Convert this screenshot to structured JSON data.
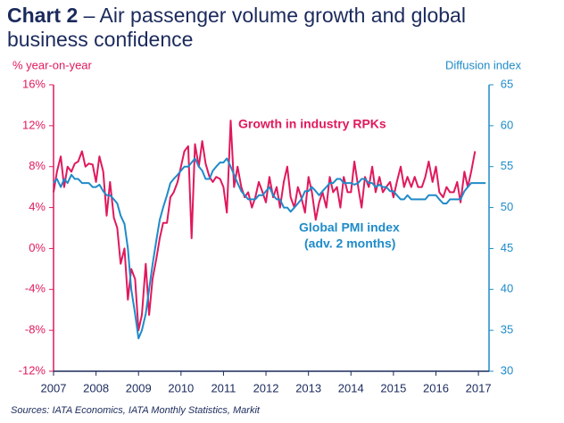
{
  "chart_data": {
    "type": "line",
    "title_label": "Chart 2",
    "title": "– Air passenger volume growth and global business confidence",
    "y_label": "% year-on-year",
    "y2_label": "Diffusion index",
    "source": "Sources: IATA Economics, IATA Monthly Statistics, Markit",
    "xlim": [
      2007,
      2017.25
    ],
    "xticks": [
      2007,
      2008,
      2009,
      2010,
      2011,
      2012,
      2013,
      2014,
      2015,
      2016,
      2017
    ],
    "ylim": [
      -12,
      16
    ],
    "yticks": [
      {
        "value": -12,
        "label": "-12%"
      },
      {
        "value": -8,
        "label": "-8%"
      },
      {
        "value": -4,
        "label": "-4%"
      },
      {
        "value": 0,
        "label": "0%"
      },
      {
        "value": 4,
        "label": "4%"
      },
      {
        "value": 8,
        "label": "8%"
      },
      {
        "value": 12,
        "label": "12%"
      },
      {
        "value": 16,
        "label": "16%"
      }
    ],
    "y2lim": [
      30,
      65
    ],
    "y2ticks": [
      30,
      35,
      40,
      45,
      50,
      55,
      60,
      65
    ],
    "series": [
      {
        "name": "Growth in industry RPKs",
        "color": "#e0195d",
        "axis": "y",
        "x": [
          2007.0,
          2007.08,
          2007.17,
          2007.25,
          2007.33,
          2007.42,
          2007.5,
          2007.58,
          2007.67,
          2007.75,
          2007.83,
          2007.92,
          2008.0,
          2008.08,
          2008.17,
          2008.25,
          2008.33,
          2008.42,
          2008.5,
          2008.58,
          2008.67,
          2008.75,
          2008.83,
          2008.92,
          2009.0,
          2009.08,
          2009.17,
          2009.25,
          2009.33,
          2009.42,
          2009.5,
          2009.58,
          2009.67,
          2009.75,
          2009.83,
          2009.92,
          2010.0,
          2010.08,
          2010.17,
          2010.25,
          2010.33,
          2010.42,
          2010.5,
          2010.58,
          2010.67,
          2010.75,
          2010.83,
          2010.92,
          2011.0,
          2011.08,
          2011.17,
          2011.25,
          2011.33,
          2011.42,
          2011.5,
          2011.58,
          2011.67,
          2011.75,
          2011.83,
          2011.92,
          2012.0,
          2012.08,
          2012.17,
          2012.25,
          2012.33,
          2012.42,
          2012.5,
          2012.58,
          2012.67,
          2012.75,
          2012.83,
          2012.92,
          2013.0,
          2013.08,
          2013.17,
          2013.25,
          2013.33,
          2013.42,
          2013.5,
          2013.58,
          2013.67,
          2013.75,
          2013.83,
          2013.92,
          2014.0,
          2014.08,
          2014.17,
          2014.25,
          2014.33,
          2014.42,
          2014.5,
          2014.58,
          2014.67,
          2014.75,
          2014.83,
          2014.92,
          2015.0,
          2015.08,
          2015.17,
          2015.25,
          2015.33,
          2015.42,
          2015.5,
          2015.58,
          2015.67,
          2015.75,
          2015.83,
          2015.92,
          2016.0,
          2016.08,
          2016.17,
          2016.25,
          2016.33,
          2016.42,
          2016.5,
          2016.58,
          2016.67,
          2016.75,
          2016.83,
          2016.92
        ],
        "values": [
          5.5,
          7.5,
          9,
          6,
          8,
          7.5,
          8.3,
          8.5,
          9.5,
          8,
          8.3,
          8.2,
          6.5,
          9,
          7.5,
          3.2,
          6.5,
          3,
          2,
          -1.5,
          0,
          -5,
          -2,
          -3,
          -8,
          -6.5,
          -1.5,
          -6.5,
          -3,
          -1,
          1,
          2.5,
          2.5,
          5,
          5.5,
          6.5,
          8,
          9.5,
          10,
          1,
          10.2,
          8,
          10.5,
          8.3,
          7,
          6.5,
          7,
          6.8,
          6,
          3.5,
          12.5,
          6,
          8,
          6,
          5,
          5.5,
          4,
          5,
          6.5,
          5.5,
          4.5,
          7,
          5,
          6,
          4,
          6.5,
          8,
          5,
          4,
          6,
          5,
          3.5,
          7,
          5.5,
          2.8,
          4.5,
          5.5,
          4,
          7,
          5.5,
          6,
          4,
          7,
          5.5,
          5.5,
          8.5,
          6,
          4,
          7,
          6,
          8,
          5.5,
          7,
          5.5,
          6,
          6.5,
          5,
          6.5,
          8,
          6,
          7,
          6,
          7,
          6,
          6,
          7,
          8.5,
          6.5,
          8,
          5.5,
          5,
          6,
          5.5,
          5.5,
          6.5,
          4.5,
          7.5,
          6,
          7.5,
          9.5
        ]
      },
      {
        "name": "Global PMI index",
        "note": "(adv. 2 months)",
        "color": "#1f8bc9",
        "axis": "y2",
        "x": [
          2007.0,
          2007.08,
          2007.17,
          2007.25,
          2007.33,
          2007.42,
          2007.5,
          2007.58,
          2007.67,
          2007.75,
          2007.83,
          2007.92,
          2008.0,
          2008.08,
          2008.17,
          2008.25,
          2008.33,
          2008.42,
          2008.5,
          2008.58,
          2008.67,
          2008.75,
          2008.83,
          2008.92,
          2009.0,
          2009.08,
          2009.17,
          2009.25,
          2009.33,
          2009.42,
          2009.5,
          2009.58,
          2009.67,
          2009.75,
          2009.83,
          2009.92,
          2010.0,
          2010.08,
          2010.17,
          2010.25,
          2010.33,
          2010.42,
          2010.5,
          2010.58,
          2010.67,
          2010.75,
          2010.83,
          2010.92,
          2011.0,
          2011.08,
          2011.17,
          2011.25,
          2011.33,
          2011.42,
          2011.5,
          2011.58,
          2011.67,
          2011.75,
          2011.83,
          2011.92,
          2012.0,
          2012.08,
          2012.17,
          2012.25,
          2012.33,
          2012.42,
          2012.5,
          2012.58,
          2012.67,
          2012.75,
          2012.83,
          2012.92,
          2013.0,
          2013.08,
          2013.17,
          2013.25,
          2013.33,
          2013.42,
          2013.5,
          2013.58,
          2013.67,
          2013.75,
          2013.83,
          2013.92,
          2014.0,
          2014.08,
          2014.17,
          2014.25,
          2014.33,
          2014.42,
          2014.5,
          2014.58,
          2014.67,
          2014.75,
          2014.83,
          2014.92,
          2015.0,
          2015.08,
          2015.17,
          2015.25,
          2015.33,
          2015.42,
          2015.5,
          2015.58,
          2015.67,
          2015.75,
          2015.83,
          2015.92,
          2016.0,
          2016.08,
          2016.17,
          2016.25,
          2016.33,
          2016.42,
          2016.5,
          2016.58,
          2016.67,
          2016.75,
          2016.83,
          2016.92,
          2017.0,
          2017.08,
          2017.17
        ],
        "values": [
          53,
          53.5,
          52.5,
          53.5,
          53,
          54,
          53.5,
          53.5,
          53,
          53,
          53,
          52.5,
          52.5,
          52.8,
          52,
          51.5,
          51.5,
          51,
          50.5,
          49,
          48,
          45,
          40,
          37,
          34,
          35,
          37,
          40,
          43,
          46,
          48.5,
          50,
          51.5,
          53,
          53.5,
          54,
          54.5,
          55,
          55,
          55.5,
          56,
          55,
          54.5,
          53.5,
          53.5,
          54.5,
          55,
          55.5,
          55.5,
          56,
          55,
          54,
          53,
          52,
          51.5,
          51,
          51,
          51,
          51.5,
          51.5,
          52,
          52.5,
          51.5,
          51,
          51,
          50,
          50,
          49.5,
          50,
          50.5,
          51,
          52,
          52,
          52.5,
          52,
          51.5,
          52,
          52.5,
          53,
          53,
          53.5,
          53.5,
          53,
          53,
          53,
          52.8,
          53,
          53.5,
          53.5,
          53,
          53,
          52.5,
          52.8,
          52.5,
          52.5,
          52,
          52,
          51.5,
          51,
          51,
          51.5,
          51,
          51,
          51,
          51,
          51,
          51.5,
          51.5,
          51.5,
          51,
          50.5,
          50.5,
          51,
          51,
          51,
          51,
          52,
          52.5,
          53,
          53,
          53,
          53,
          53
        ]
      }
    ]
  }
}
